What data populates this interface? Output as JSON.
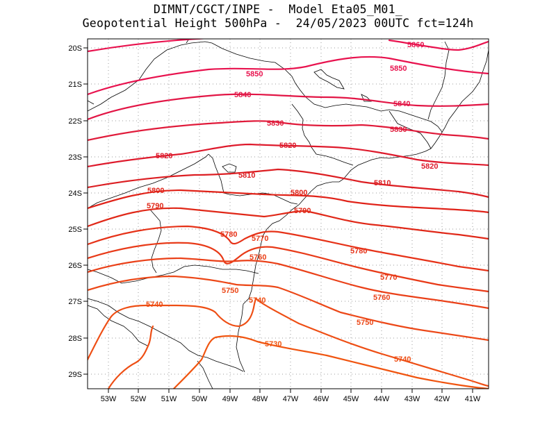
{
  "header": {
    "line1": "DIMNT/CGCT/INPE -  Model Eta05_M01_",
    "line2": "Geopotential Height 500hPa -  24/05/2023 00UTC fct=124h"
  },
  "axes": {
    "lat_labels": [
      "20S",
      "21S",
      "22S",
      "23S",
      "24S",
      "25S",
      "26S",
      "27S",
      "28S",
      "29S"
    ],
    "lon_labels": [
      "53W",
      "52W",
      "51W",
      "50W",
      "49W",
      "48W",
      "47W",
      "46W",
      "45W",
      "44W",
      "43W",
      "42W",
      "41W"
    ]
  },
  "colors": {
    "c5860": "#e8124e",
    "c5850": "#e8124e",
    "c5840": "#e21545",
    "c5830": "#e01a3a",
    "c5820": "#de1a2c",
    "c5810": "#dc1e22",
    "c5800": "#e02218",
    "c5790": "#e02818",
    "c5780": "#e63218",
    "c5770": "#e83a18",
    "c5760": "#ea4018",
    "c5750": "#ec4818",
    "c5740": "#ee4e14",
    "c5730": "#f05510",
    "coast": "#000000",
    "grid": "#999999"
  },
  "contours": [
    {
      "value": 5860,
      "labels": [
        "5860"
      ]
    },
    {
      "value": 5850,
      "labels": [
        "5850",
        "5850"
      ]
    },
    {
      "value": 5840,
      "labels": [
        "5840",
        "5840"
      ]
    },
    {
      "value": 5830,
      "labels": [
        "5830",
        "5830"
      ]
    },
    {
      "value": 5820,
      "labels": [
        "5820",
        "5820",
        "5820"
      ]
    },
    {
      "value": 5810,
      "labels": [
        "5810",
        "5810"
      ]
    },
    {
      "value": 5800,
      "labels": [
        "5800",
        "5800"
      ]
    },
    {
      "value": 5790,
      "labels": [
        "5790",
        "5790"
      ]
    },
    {
      "value": 5780,
      "labels": [
        "5780",
        "5780"
      ]
    },
    {
      "value": 5770,
      "labels": [
        "5770",
        "5770"
      ]
    },
    {
      "value": 5760,
      "labels": [
        "5760",
        "5760"
      ]
    },
    {
      "value": 5750,
      "labels": [
        "5750",
        "5750"
      ]
    },
    {
      "value": 5740,
      "labels": [
        "5740",
        "5740",
        "5740"
      ]
    },
    {
      "value": 5730,
      "labels": [
        "5730"
      ]
    }
  ]
}
